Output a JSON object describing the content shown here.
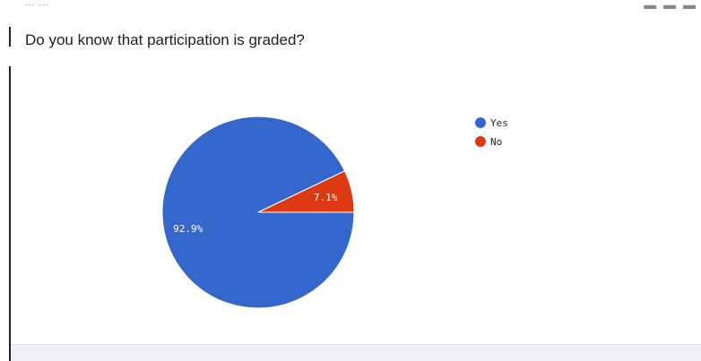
{
  "header": {
    "ellipsis": "... ...",
    "right_glyphs": "▬ ▬ ▬"
  },
  "question": {
    "title": "Do you know that participation is graded?"
  },
  "chart_data": {
    "type": "pie",
    "title": "",
    "categories": [
      "Yes",
      "No"
    ],
    "values": [
      92.9,
      7.1
    ],
    "labels": [
      "92.9%",
      "7.1%"
    ],
    "colors": [
      "#3566cc",
      "#dc3912"
    ],
    "legend": {
      "position": "right",
      "entries": [
        "Yes",
        "No"
      ]
    }
  }
}
